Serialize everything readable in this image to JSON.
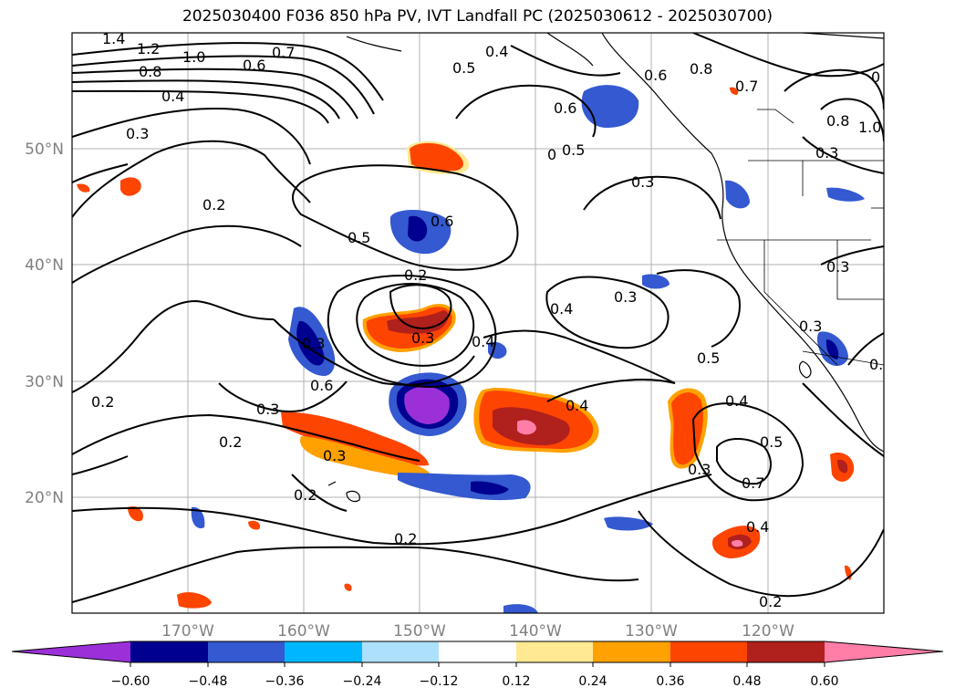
{
  "title": "2025030400 F036 850 hPa PV, IVT Landfall PC (2025030612 - 2025030700)",
  "axes": {
    "lon_labels": [
      "170°W",
      "160°W",
      "150°W",
      "140°W",
      "130°W",
      "120°W"
    ],
    "lat_labels": [
      "50°N",
      "40°N",
      "30°N",
      "20°N"
    ]
  },
  "colorbar": {
    "colors": [
      "#9b30d9",
      "#000090",
      "#3459d0",
      "#00b7ff",
      "#ade0fa",
      "#ffffff",
      "#ffe992",
      "#ffa100",
      "#fe4401",
      "#b0201c",
      "#ff7ea8"
    ],
    "tick_labels": [
      "−0.60",
      "−0.48",
      "−0.36",
      "−0.24",
      "−0.12",
      "0.12",
      "0.24",
      "0.36",
      "0.48",
      "0.60"
    ]
  },
  "contour_labels": [
    "1.4",
    "1.2",
    "1.0",
    "0.8",
    "0.6",
    "0.7",
    "0.4",
    "0.5",
    "0.4",
    "0.6",
    "0.8",
    "0.7",
    "0.5",
    "0.6",
    "0.3",
    "0.3",
    "0.2",
    "0.6",
    "0.5",
    "0.2",
    "0.4",
    "0.3",
    "0.3",
    "0.4",
    "0.3",
    "0.5",
    "0.6",
    "0.4",
    "0.3",
    "0.2",
    "0.2",
    "0.3",
    "0.2",
    "0.5",
    "0.7",
    "0.3",
    "0.4",
    "0.2",
    "0.2",
    "0.3",
    "0.4",
    "0.8",
    "1.0",
    "0.3",
    "0.3",
    "0.4",
    "0",
    "0"
  ]
}
